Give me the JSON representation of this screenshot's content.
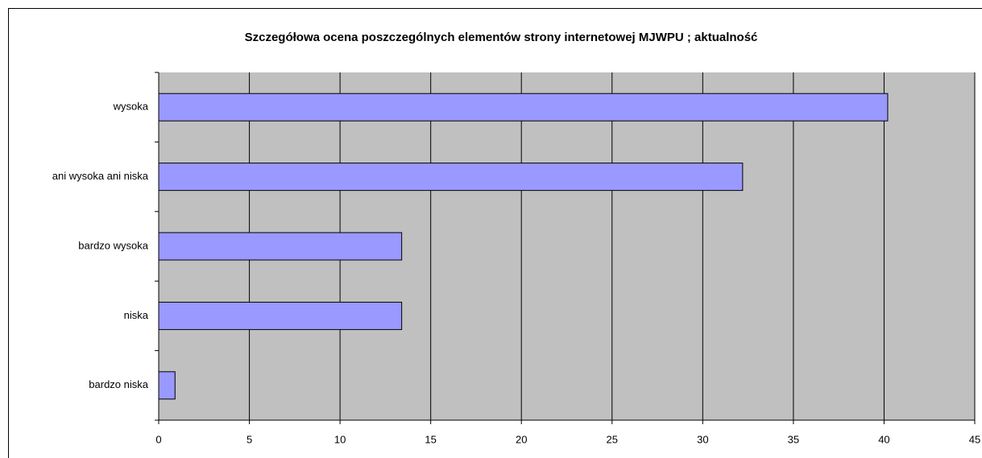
{
  "chart_data": {
    "type": "barh",
    "title": "Szczegółowa ocena poszczególnych elementów strony internetowej MJWPU ; aktualność",
    "categories": [
      "wysoka",
      "ani wysoka ani niska",
      "bardzo wysoka",
      "niska",
      "bardzo niska"
    ],
    "values": [
      40.2,
      32.2,
      13.4,
      13.4,
      0.9
    ],
    "color": "#9999ff",
    "xlim": [
      0,
      45
    ],
    "xticks": [
      0,
      5,
      10,
      15,
      20,
      25,
      30,
      35,
      40,
      45
    ],
    "grid": true,
    "plot_background": "#c0c0c0"
  }
}
